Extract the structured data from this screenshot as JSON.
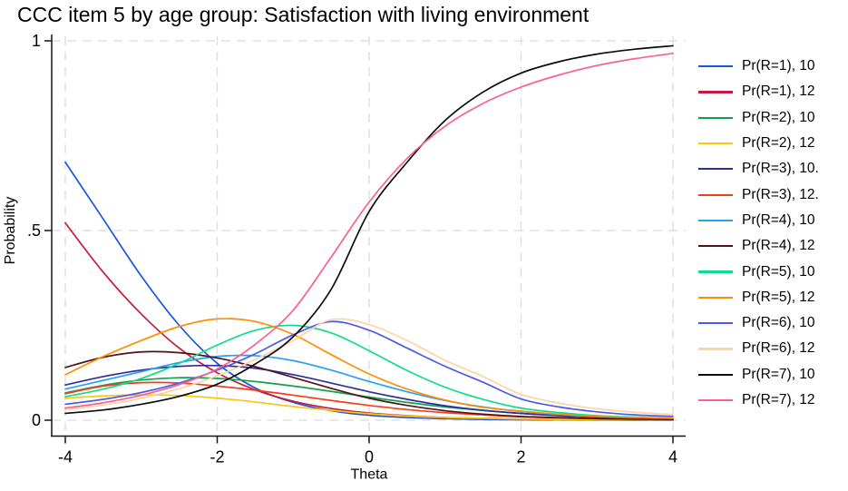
{
  "title": "CCC item 5 by age group: Satisfaction with living environment",
  "colors": {
    "background": "#ffffff",
    "grid": "#dcdcdc",
    "axis": "#141414",
    "text": "#000000"
  },
  "chart_data": {
    "type": "line",
    "title": "CCC item 5 by age group: Satisfaction with living environment",
    "xlabel": "Theta",
    "ylabel": "Probability",
    "xlim": [
      -4,
      4
    ],
    "ylim": [
      0,
      1
    ],
    "x_ticks": [
      -4,
      -2,
      0,
      2,
      4
    ],
    "x_tick_labels": [
      "-4",
      "-2",
      "0",
      "2",
      "4"
    ],
    "y_ticks": [
      0,
      0.5,
      1
    ],
    "y_tick_labels": [
      "0",
      ".5",
      "1"
    ],
    "grid": "dashed",
    "legend_position": "right",
    "x": [
      -4,
      -3.5,
      -3,
      -2.5,
      -2,
      -1.5,
      -1,
      -0.5,
      0,
      0.5,
      1,
      1.5,
      2,
      2.5,
      3,
      3.5,
      4
    ],
    "series": [
      {
        "name": "Pr(R=1), 10",
        "color": "#1957E1",
        "values": [
          0.68,
          0.53,
          0.38,
          0.25,
          0.15,
          0.085,
          0.047,
          0.025,
          0.013,
          0.007,
          0.004,
          0.002,
          0.001,
          0.001,
          0.001,
          0.0,
          0.0
        ]
      },
      {
        "name": "Pr(R=1), 12",
        "color": "#C81A3E",
        "values": [
          0.52,
          0.39,
          0.28,
          0.19,
          0.125,
          0.08,
          0.05,
          0.031,
          0.019,
          0.012,
          0.007,
          0.005,
          0.003,
          0.002,
          0.001,
          0.001,
          0.001
        ]
      },
      {
        "name": "Pr(R=2), 10",
        "color": "#13A04D",
        "values": [
          0.072,
          0.092,
          0.106,
          0.112,
          0.11,
          0.102,
          0.09,
          0.076,
          0.061,
          0.047,
          0.035,
          0.026,
          0.018,
          0.013,
          0.009,
          0.006,
          0.004
        ]
      },
      {
        "name": "Pr(R=2), 12",
        "color": "#FFC40C",
        "values": [
          0.058,
          0.064,
          0.067,
          0.065,
          0.058,
          0.048,
          0.036,
          0.026,
          0.017,
          0.011,
          0.007,
          0.005,
          0.003,
          0.002,
          0.002,
          0.001,
          0.001
        ]
      },
      {
        "name": "Pr(R=3), 10.",
        "color": "#2D2F9E",
        "values": [
          0.093,
          0.115,
          0.132,
          0.142,
          0.144,
          0.137,
          0.12,
          0.098,
          0.075,
          0.055,
          0.038,
          0.026,
          0.018,
          0.012,
          0.008,
          0.005,
          0.003
        ]
      },
      {
        "name": "Pr(R=3), 12.",
        "color": "#F23F17",
        "values": [
          0.07,
          0.09,
          0.099,
          0.098,
          0.09,
          0.079,
          0.066,
          0.052,
          0.039,
          0.028,
          0.02,
          0.014,
          0.009,
          0.006,
          0.004,
          0.003,
          0.002
        ]
      },
      {
        "name": "Pr(R=4), 10",
        "color": "#2AA0F2",
        "values": [
          0.082,
          0.105,
          0.128,
          0.152,
          0.168,
          0.17,
          0.157,
          0.132,
          0.102,
          0.075,
          0.052,
          0.035,
          0.023,
          0.015,
          0.01,
          0.007,
          0.004
        ]
      },
      {
        "name": "Pr(R=4), 12",
        "color": "#511317",
        "values": [
          0.139,
          0.166,
          0.18,
          0.178,
          0.164,
          0.141,
          0.113,
          0.084,
          0.058,
          0.039,
          0.025,
          0.016,
          0.01,
          0.007,
          0.004,
          0.003,
          0.002
        ]
      },
      {
        "name": "Pr(R=5), 10",
        "color": "#0FDC8D",
        "values": [
          0.062,
          0.082,
          0.11,
          0.15,
          0.198,
          0.237,
          0.25,
          0.23,
          0.183,
          0.131,
          0.087,
          0.055,
          0.032,
          0.02,
          0.012,
          0.008,
          0.005
        ]
      },
      {
        "name": "Pr(R=5), 12",
        "color": "#FF8E00",
        "values": [
          0.12,
          0.168,
          0.21,
          0.247,
          0.267,
          0.26,
          0.226,
          0.173,
          0.122,
          0.082,
          0.053,
          0.034,
          0.024,
          0.016,
          0.01,
          0.007,
          0.005
        ]
      },
      {
        "name": "Pr(R=6), 10",
        "color": "#4A5BEB",
        "values": [
          0.042,
          0.055,
          0.073,
          0.098,
          0.132,
          0.175,
          0.225,
          0.26,
          0.237,
          0.19,
          0.142,
          0.1,
          0.056,
          0.035,
          0.022,
          0.014,
          0.01
        ]
      },
      {
        "name": "Pr(R=6), 12",
        "color": "#FFD3A4",
        "values": [
          0.028,
          0.04,
          0.058,
          0.083,
          0.117,
          0.16,
          0.21,
          0.265,
          0.252,
          0.21,
          0.158,
          0.115,
          0.068,
          0.045,
          0.03,
          0.021,
          0.015
        ]
      },
      {
        "name": "Pr(R=7), 10",
        "color": "#0B0B12",
        "values": [
          0.018,
          0.027,
          0.042,
          0.063,
          0.095,
          0.148,
          0.22,
          0.345,
          0.55,
          0.68,
          0.79,
          0.865,
          0.915,
          0.945,
          0.965,
          0.978,
          0.987
        ]
      },
      {
        "name": "Pr(R=7), 12",
        "color": "#FB608F",
        "values": [
          0.032,
          0.046,
          0.066,
          0.094,
          0.135,
          0.2,
          0.29,
          0.43,
          0.575,
          0.69,
          0.775,
          0.835,
          0.878,
          0.91,
          0.935,
          0.953,
          0.967
        ]
      }
    ]
  }
}
